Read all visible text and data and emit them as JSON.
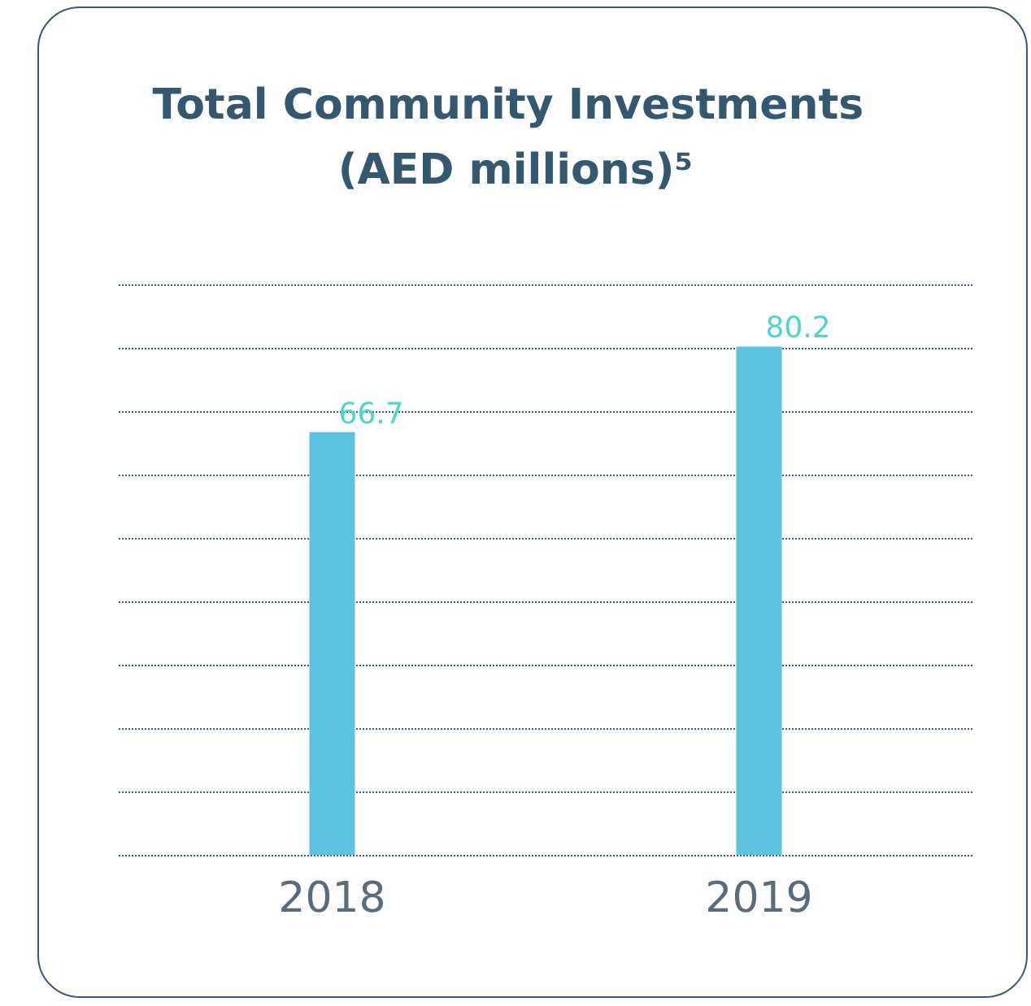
{
  "chart_data": {
    "type": "bar",
    "title": "Total Community Investments (AED millions)⁵",
    "categories": [
      "2018",
      "2019"
    ],
    "values": [
      66.7,
      80.2
    ],
    "color": "#5bc4e0",
    "ylim": [
      0,
      90
    ],
    "yticks": [
      {
        "value": 0,
        "label": null
      },
      {
        "value": 10,
        "label": null
      },
      {
        "value": 20,
        "label": null
      },
      {
        "value": 30,
        "label": null
      },
      {
        "value": 40,
        "label": null
      },
      {
        "value": 50,
        "label": null
      },
      {
        "value": 60,
        "label": null
      },
      {
        "value": 70,
        "label": null
      },
      {
        "value": 80,
        "label": null
      },
      {
        "value": 90,
        "label": null
      }
    ],
    "tick_labels": "x",
    "grid": true,
    "data_labels": true
  }
}
